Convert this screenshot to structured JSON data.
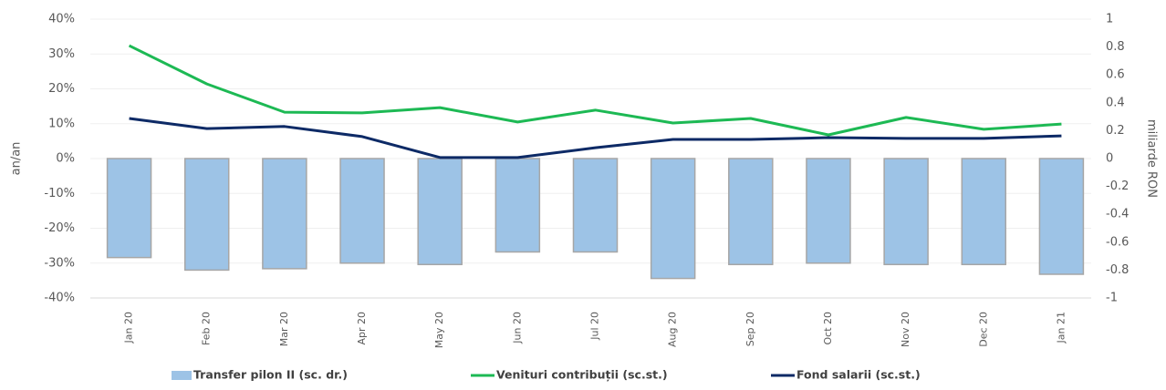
{
  "chart_data": {
    "type": "bar",
    "categories": [
      "Jan 20",
      "Feb 20",
      "Mar 20",
      "Apr 20",
      "May 20",
      "Jun 20",
      "Jul 20",
      "Aug 20",
      "Sep 20",
      "Oct 20",
      "Nov 20",
      "Dec 20",
      "Jan 21"
    ],
    "series": [
      {
        "name": "Transfer pilon II (sc. dr.)",
        "type": "bar",
        "axis": "y2",
        "color": "#9dc3e6",
        "values": [
          -0.71,
          -0.8,
          -0.79,
          -0.75,
          -0.76,
          -0.67,
          -0.67,
          -0.86,
          -0.76,
          -0.75,
          -0.76,
          -0.76,
          -0.83
        ]
      },
      {
        "name": "Venituri contribuții (sc.st.)",
        "type": "line",
        "color": "#1db954",
        "values": [
          32.4,
          21.4,
          13.3,
          13.1,
          14.6,
          10.5,
          13.9,
          10.2,
          11.5,
          6.8,
          11.8,
          8.4,
          9.9
        ]
      },
      {
        "name": "Fond salarii (sc.st.)",
        "type": "line",
        "color": "#0d2a66",
        "values": [
          11.5,
          8.6,
          9.2,
          6.3,
          0.3,
          0.3,
          3.1,
          5.5,
          5.5,
          6.0,
          5.8,
          5.8,
          6.5
        ]
      }
    ],
    "ylabel": "an/an",
    "y2label": "miliarde RON",
    "ylim": [
      -40,
      40
    ],
    "yticks": [
      {
        "value": -40,
        "label": "-40%"
      },
      {
        "value": -30,
        "label": "-30%"
      },
      {
        "value": -20,
        "label": "-20%"
      },
      {
        "value": -10,
        "label": "-10%"
      },
      {
        "value": 0,
        "label": "0%"
      },
      {
        "value": 10,
        "label": "10%"
      },
      {
        "value": 20,
        "label": "20%"
      },
      {
        "value": 30,
        "label": "30%"
      },
      {
        "value": 40,
        "label": "40%"
      }
    ],
    "y2lim": [
      -1,
      1
    ],
    "y2ticks": [
      -1,
      -0.8,
      -0.6,
      -0.4,
      -0.2,
      0,
      0.2,
      0.4,
      0.6,
      0.8,
      1
    ],
    "grid": true,
    "legend": "bottom"
  }
}
